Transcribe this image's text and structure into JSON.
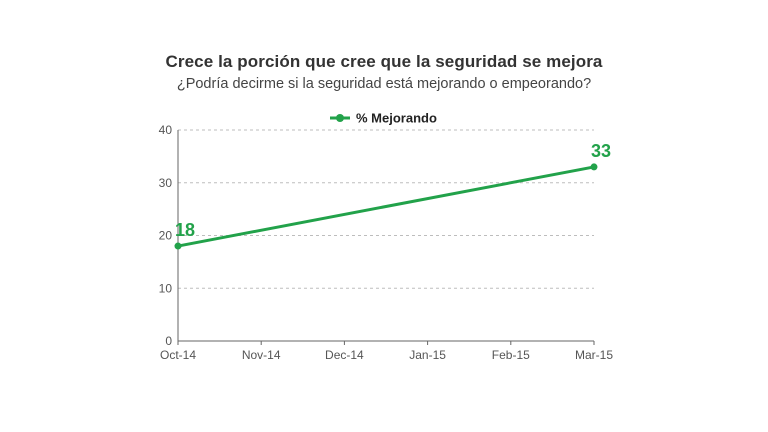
{
  "chart_data": {
    "type": "line",
    "title": "Crece la porción que cree que la seguridad se mejora",
    "subtitle": "¿Podría decirme si la seguridad está mejorando o empeorando?",
    "categories": [
      "Oct-14",
      "Nov-14",
      "Dec-14",
      "Jan-15",
      "Feb-15",
      "Mar-15"
    ],
    "ylim": [
      0,
      40
    ],
    "yticks": [
      0,
      10,
      20,
      30,
      40
    ],
    "grid": true,
    "legend_position": "top-center",
    "series": [
      {
        "name": "% Mejorando",
        "color": "#22a24a",
        "points": [
          {
            "x": "Oct-14",
            "y": 18,
            "label": "18"
          },
          {
            "x": "Mar-15",
            "y": 33,
            "label": "33"
          }
        ]
      }
    ]
  }
}
